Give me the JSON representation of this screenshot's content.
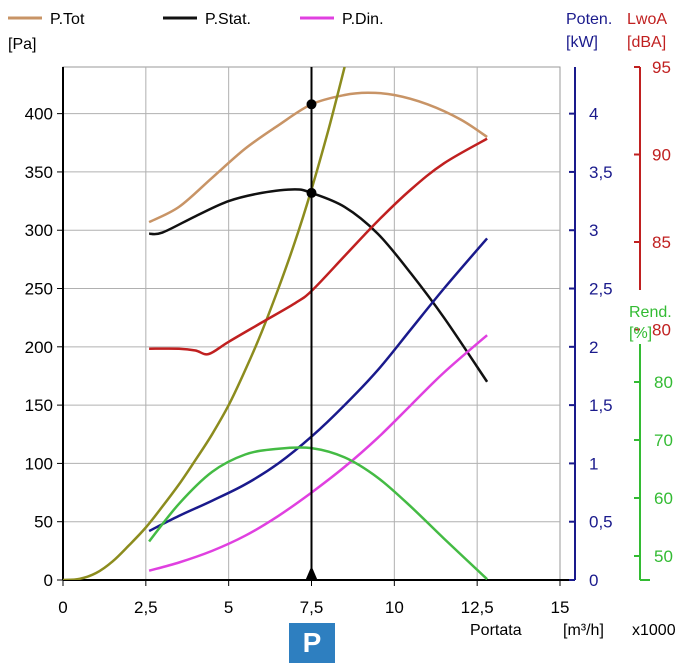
{
  "chart_data": {
    "type": "line",
    "title": "",
    "legend": [
      {
        "name": "P.Tot",
        "color": "#c89466"
      },
      {
        "name": "P.Stat.",
        "color": "#111111"
      },
      {
        "name": "P.Din.",
        "color": "#e040e0"
      }
    ],
    "legend_placement": "top-left",
    "x_axis": {
      "label": "Portata",
      "unit": "[m³/h]",
      "multiplier": "x1000",
      "range": [
        0,
        15
      ],
      "ticks": [
        {
          "v": 0,
          "t": "0"
        },
        {
          "v": 2.5,
          "t": "2,5"
        },
        {
          "v": 5,
          "t": "5"
        },
        {
          "v": 7.5,
          "t": "7,5"
        },
        {
          "v": 10,
          "t": "10"
        },
        {
          "v": 12.5,
          "t": "12,5"
        },
        {
          "v": 15,
          "t": "15"
        }
      ]
    },
    "y_axis_pressure": {
      "unit": "[Pa]",
      "range": [
        0,
        440
      ],
      "color": "#000000",
      "ticks": [
        {
          "v": 0,
          "t": "0"
        },
        {
          "v": 50,
          "t": "50"
        },
        {
          "v": 100,
          "t": "100"
        },
        {
          "v": 150,
          "t": "150"
        },
        {
          "v": 200,
          "t": "200"
        },
        {
          "v": 250,
          "t": "250"
        },
        {
          "v": 300,
          "t": "300"
        },
        {
          "v": 350,
          "t": "350"
        },
        {
          "v": 400,
          "t": "400"
        }
      ]
    },
    "y_axis_power": {
      "label": "Poten.",
      "unit": "[kW]",
      "range": [
        0,
        4.4
      ],
      "color": "#1a1a8c",
      "ticks": [
        {
          "v": 0,
          "t": "0"
        },
        {
          "v": 0.5,
          "t": "0,5"
        },
        {
          "v": 1,
          "t": "1"
        },
        {
          "v": 1.5,
          "t": "1,5"
        },
        {
          "v": 2,
          "t": "2"
        },
        {
          "v": 2.5,
          "t": "2,5"
        },
        {
          "v": 3,
          "t": "3"
        },
        {
          "v": 3.5,
          "t": "3,5"
        },
        {
          "v": 4,
          "t": "4"
        }
      ]
    },
    "y_axis_noise": {
      "label": "LwoA",
      "unit": "[dBA]",
      "range": [
        75,
        95
      ],
      "color": "#c02020",
      "ticks": [
        {
          "v": 80,
          "t": "80"
        },
        {
          "v": 85,
          "t": "85"
        },
        {
          "v": 90,
          "t": "90"
        },
        {
          "v": 95,
          "t": "95"
        }
      ]
    },
    "y_axis_efficiency": {
      "label": "Rend.",
      "unit": "[%]",
      "range": [
        45,
        85
      ],
      "color": "#33bb33",
      "ticks": [
        {
          "v": 50,
          "t": "50"
        },
        {
          "v": 60,
          "t": "60"
        },
        {
          "v": 70,
          "t": "70"
        },
        {
          "v": 80,
          "t": "80"
        }
      ]
    },
    "grid": true,
    "series": [
      {
        "name": "P.Tot",
        "axis": "pressure",
        "color": "#c89466",
        "x": [
          2.6,
          3.5,
          4.5,
          5.5,
          6.5,
          7.5,
          8.5,
          9.2,
          10,
          11,
          12,
          12.8
        ],
        "y": [
          307,
          320,
          345,
          370,
          390,
          408,
          416,
          418,
          416,
          408,
          395,
          380
        ]
      },
      {
        "name": "P.Stat.",
        "axis": "pressure",
        "color": "#111111",
        "x": [
          2.6,
          3,
          4,
          5,
          6,
          7,
          7.5,
          8.5,
          9.5,
          10.5,
          11.5,
          12.8
        ],
        "y": [
          297,
          298,
          312,
          325,
          332,
          335,
          332,
          320,
          297,
          263,
          225,
          170
        ]
      },
      {
        "name": "P.Din.",
        "axis": "pressure",
        "color": "#e040e0",
        "x": [
          2.6,
          3.5,
          4.5,
          5.5,
          6.5,
          7.5,
          8.5,
          9.5,
          10.5,
          11.5,
          12.8
        ],
        "y": [
          8,
          15,
          25,
          38,
          55,
          75,
          97,
          122,
          150,
          178,
          210
        ]
      },
      {
        "name": "",
        "axis": "pressure",
        "color": "#8c8c1e",
        "x": [
          0,
          0.5,
          1,
          1.5,
          2,
          2.5,
          3,
          3.5,
          4,
          4.5,
          5,
          5.5,
          6,
          6.5,
          7,
          7.5,
          8,
          8.5
        ],
        "y": [
          0,
          1,
          6,
          16,
          30,
          45,
          63,
          82,
          103,
          125,
          150,
          180,
          213,
          250,
          290,
          335,
          385,
          440
        ]
      },
      {
        "name": "",
        "axis": "power",
        "color": "#1a1a8c",
        "x": [
          2.6,
          3.5,
          4.5,
          5.5,
          6.5,
          7.5,
          8.5,
          9.5,
          10.5,
          11.5,
          12.8
        ],
        "y": [
          0.42,
          0.55,
          0.68,
          0.82,
          1.0,
          1.23,
          1.5,
          1.8,
          2.15,
          2.5,
          2.93
        ]
      },
      {
        "name": "",
        "axis": "noise",
        "color": "#c02020",
        "x": [
          2.6,
          3.5,
          4,
          4.4,
          5,
          6,
          7,
          7.5,
          8.5,
          9.5,
          10.5,
          11.5,
          12.8
        ],
        "y": [
          78.9,
          78.9,
          78.8,
          78.6,
          79.3,
          80.4,
          81.5,
          82.2,
          84.2,
          86.2,
          88.0,
          89.5,
          90.9
        ]
      },
      {
        "name": "",
        "axis": "efficiency",
        "color": "#44bb44",
        "x": [
          2.6,
          3.5,
          4.5,
          5.5,
          6.5,
          7.5,
          8.5,
          9.5,
          10.5,
          11.5,
          12.8
        ],
        "y": [
          52.5,
          59.0,
          64.5,
          67.5,
          68.5,
          68.6,
          67.0,
          63.5,
          58.5,
          53.0,
          46.0
        ]
      }
    ],
    "operating_point": {
      "x": 7.5,
      "label": "P",
      "markers": [
        {
          "series": "P.Tot",
          "y": 408
        },
        {
          "series": "P.Stat.",
          "y": 332
        }
      ]
    }
  }
}
